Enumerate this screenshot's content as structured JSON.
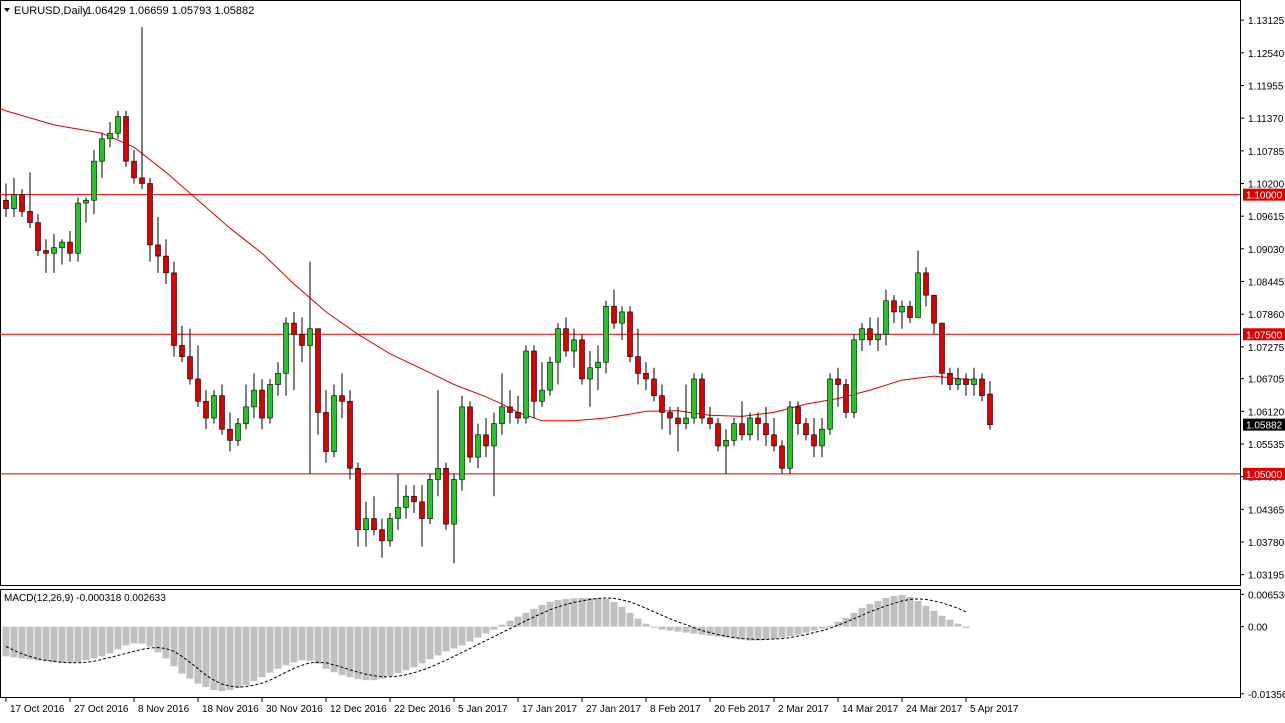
{
  "header": {
    "symbol": "EURUSD,Daily",
    "ohlc": "1.06429 1.06659 1.05793 1.05882"
  },
  "colors": {
    "bull": "#22c522",
    "bear": "#dd0000",
    "wick": "#000000",
    "ma": "#dd0000",
    "hline": "#dd0000",
    "hist": "#c0c0c0",
    "signal": "#000000",
    "background": "#ffffff"
  },
  "chart_data": {
    "type": "candlestick",
    "price_axis": {
      "ticks": [
        "1.13125",
        "1.12540",
        "1.11955",
        "1.11370",
        "1.10785",
        "1.10200",
        "1.09615",
        "1.09030",
        "1.08445",
        "1.07860",
        "1.07275",
        "1.06705",
        "1.06120",
        "1.05535",
        "1.04950",
        "1.04365",
        "1.03780",
        "1.03195"
      ],
      "range": [
        1.0301,
        1.1345
      ]
    },
    "current_price_label": "1.05882",
    "current_price": 1.05882,
    "horizontal_levels": [
      {
        "value": 1.1,
        "label": "1.10000"
      },
      {
        "value": 1.075,
        "label": "1.07500"
      },
      {
        "value": 1.05,
        "label": "1.05000"
      }
    ],
    "date_labels": [
      {
        "label": "17 Oct 2016",
        "index": 0
      },
      {
        "label": "27 Oct 2016",
        "index": 8
      },
      {
        "label": "8 Nov 2016",
        "index": 16
      },
      {
        "label": "18 Nov 2016",
        "index": 24
      },
      {
        "label": "30 Nov 2016",
        "index": 32
      },
      {
        "label": "12 Dec 2016",
        "index": 40
      },
      {
        "label": "22 Dec 2016",
        "index": 48
      },
      {
        "label": "5 Jan 2017",
        "index": 56
      },
      {
        "label": "17 Jan 2017",
        "index": 64
      },
      {
        "label": "27 Jan 2017",
        "index": 72
      },
      {
        "label": "8 Feb 2017",
        "index": 80
      },
      {
        "label": "20 Feb 2017",
        "index": 88
      },
      {
        "label": "2 Mar 2017",
        "index": 96
      },
      {
        "label": "14 Mar 2017",
        "index": 104
      },
      {
        "label": "24 Mar 2017",
        "index": 112
      },
      {
        "label": "5 Apr 2017",
        "index": 120
      }
    ],
    "candles": [
      [
        1.099,
        1.102,
        1.096,
        1.0975
      ],
      [
        1.0975,
        1.103,
        1.096,
        1.1
      ],
      [
        1.1,
        1.101,
        1.096,
        1.097
      ],
      [
        1.097,
        1.104,
        1.094,
        1.095
      ],
      [
        1.095,
        1.0965,
        1.089,
        1.09
      ],
      [
        1.09,
        1.092,
        1.086,
        1.0895
      ],
      [
        1.0895,
        1.093,
        1.086,
        1.0905
      ],
      [
        1.0905,
        1.092,
        1.0875,
        1.0915
      ],
      [
        1.0915,
        1.0935,
        1.088,
        1.0895
      ],
      [
        1.0895,
        1.0995,
        1.088,
        1.0985
      ],
      [
        1.0985,
        1.0995,
        1.095,
        1.099
      ],
      [
        1.099,
        1.108,
        1.0965,
        1.106
      ],
      [
        1.106,
        1.111,
        1.103,
        1.11
      ],
      [
        1.11,
        1.113,
        1.1085,
        1.111
      ],
      [
        1.111,
        1.115,
        1.11,
        1.114
      ],
      [
        1.114,
        1.115,
        1.105,
        1.106
      ],
      [
        1.106,
        1.108,
        1.102,
        1.103
      ],
      [
        1.103,
        1.13,
        1.101,
        1.102
      ],
      [
        1.102,
        1.103,
        1.088,
        1.091
      ],
      [
        1.091,
        1.096,
        1.086,
        1.089
      ],
      [
        1.089,
        1.092,
        1.084,
        1.086
      ],
      [
        1.086,
        1.088,
        1.071,
        1.073
      ],
      [
        1.073,
        1.0765,
        1.07,
        1.071
      ],
      [
        1.071,
        1.076,
        1.066,
        1.067
      ],
      [
        1.067,
        1.073,
        1.062,
        1.063
      ],
      [
        1.063,
        1.065,
        1.058,
        1.06
      ],
      [
        1.06,
        1.065,
        1.059,
        1.064
      ],
      [
        1.064,
        1.066,
        1.057,
        1.058
      ],
      [
        1.058,
        1.061,
        1.054,
        1.056
      ],
      [
        1.056,
        1.06,
        1.055,
        1.059
      ],
      [
        1.059,
        1.066,
        1.058,
        1.062
      ],
      [
        1.062,
        1.068,
        1.06,
        1.065
      ],
      [
        1.065,
        1.067,
        1.058,
        1.06
      ],
      [
        1.06,
        1.067,
        1.059,
        1.066
      ],
      [
        1.066,
        1.07,
        1.064,
        1.068
      ],
      [
        1.068,
        1.078,
        1.064,
        1.077
      ],
      [
        1.077,
        1.079,
        1.065,
        1.075
      ],
      [
        1.075,
        1.078,
        1.07,
        1.073
      ],
      [
        1.073,
        1.088,
        1.05,
        1.076
      ],
      [
        1.076,
        1.076,
        1.057,
        1.061
      ],
      [
        1.061,
        1.065,
        1.052,
        1.054
      ],
      [
        1.054,
        1.066,
        1.053,
        1.064
      ],
      [
        1.064,
        1.068,
        1.06,
        1.063
      ],
      [
        1.063,
        1.065,
        1.049,
        1.051
      ],
      [
        1.051,
        1.052,
        1.037,
        1.04
      ],
      [
        1.04,
        1.045,
        1.037,
        1.042
      ],
      [
        1.042,
        1.046,
        1.039,
        1.04
      ],
      [
        1.04,
        1.042,
        1.035,
        1.038
      ],
      [
        1.038,
        1.043,
        1.037,
        1.042
      ],
      [
        1.042,
        1.05,
        1.04,
        1.044
      ],
      [
        1.044,
        1.048,
        1.042,
        1.046
      ],
      [
        1.046,
        1.048,
        1.043,
        1.045
      ],
      [
        1.045,
        1.048,
        1.037,
        1.042
      ],
      [
        1.042,
        1.05,
        1.041,
        1.049
      ],
      [
        1.049,
        1.065,
        1.046,
        1.051
      ],
      [
        1.051,
        1.052,
        1.04,
        1.041
      ],
      [
        1.041,
        1.05,
        1.034,
        1.049
      ],
      [
        1.049,
        1.064,
        1.047,
        1.062
      ],
      [
        1.062,
        1.063,
        1.052,
        1.053
      ],
      [
        1.053,
        1.059,
        1.051,
        1.057
      ],
      [
        1.057,
        1.06,
        1.053,
        1.055
      ],
      [
        1.055,
        1.061,
        1.046,
        1.059
      ],
      [
        1.059,
        1.068,
        1.057,
        1.062
      ],
      [
        1.062,
        1.065,
        1.059,
        1.061
      ],
      [
        1.061,
        1.064,
        1.059,
        1.06
      ],
      [
        1.06,
        1.073,
        1.059,
        1.072
      ],
      [
        1.072,
        1.073,
        1.06,
        1.063
      ],
      [
        1.063,
        1.07,
        1.062,
        1.065
      ],
      [
        1.065,
        1.071,
        1.064,
        1.07
      ],
      [
        1.07,
        1.077,
        1.066,
        1.076
      ],
      [
        1.076,
        1.078,
        1.071,
        1.072
      ],
      [
        1.072,
        1.076,
        1.069,
        1.074
      ],
      [
        1.074,
        1.075,
        1.066,
        1.067
      ],
      [
        1.067,
        1.072,
        1.062,
        1.069
      ],
      [
        1.069,
        1.073,
        1.065,
        1.07
      ],
      [
        1.07,
        1.081,
        1.068,
        1.08
      ],
      [
        1.08,
        1.083,
        1.076,
        1.077
      ],
      [
        1.077,
        1.08,
        1.074,
        1.079
      ],
      [
        1.079,
        1.08,
        1.07,
        1.071
      ],
      [
        1.071,
        1.076,
        1.066,
        1.068
      ],
      [
        1.068,
        1.07,
        1.065,
        1.067
      ],
      [
        1.067,
        1.069,
        1.063,
        1.064
      ],
      [
        1.064,
        1.066,
        1.058,
        1.061
      ],
      [
        1.061,
        1.062,
        1.057,
        1.06
      ],
      [
        1.06,
        1.062,
        1.054,
        1.059
      ],
      [
        1.059,
        1.066,
        1.058,
        1.06
      ],
      [
        1.06,
        1.068,
        1.059,
        1.067
      ],
      [
        1.067,
        1.068,
        1.059,
        1.06
      ],
      [
        1.06,
        1.062,
        1.058,
        1.059
      ],
      [
        1.059,
        1.06,
        1.054,
        1.055
      ],
      [
        1.055,
        1.058,
        1.05,
        1.056
      ],
      [
        1.056,
        1.06,
        1.055,
        1.059
      ],
      [
        1.059,
        1.063,
        1.056,
        1.057
      ],
      [
        1.057,
        1.061,
        1.056,
        1.06
      ],
      [
        1.06,
        1.061,
        1.056,
        1.059
      ],
      [
        1.059,
        1.062,
        1.055,
        1.057
      ],
      [
        1.057,
        1.06,
        1.054,
        1.055
      ],
      [
        1.055,
        1.056,
        1.05,
        1.051
      ],
      [
        1.051,
        1.063,
        1.05,
        1.062
      ],
      [
        1.062,
        1.063,
        1.057,
        1.059
      ],
      [
        1.059,
        1.06,
        1.056,
        1.057
      ],
      [
        1.057,
        1.06,
        1.053,
        1.055
      ],
      [
        1.055,
        1.06,
        1.053,
        1.058
      ],
      [
        1.058,
        1.068,
        1.057,
        1.067
      ],
      [
        1.067,
        1.069,
        1.062,
        1.066
      ],
      [
        1.066,
        1.067,
        1.06,
        1.061
      ],
      [
        1.061,
        1.075,
        1.06,
        1.074
      ],
      [
        1.074,
        1.077,
        1.072,
        1.076
      ],
      [
        1.076,
        1.078,
        1.073,
        1.074
      ],
      [
        1.074,
        1.078,
        1.072,
        1.075
      ],
      [
        1.075,
        1.083,
        1.073,
        1.081
      ],
      [
        1.081,
        1.082,
        1.077,
        1.079
      ],
      [
        1.079,
        1.081,
        1.076,
        1.08
      ],
      [
        1.08,
        1.081,
        1.077,
        1.078
      ],
      [
        1.078,
        1.09,
        1.078,
        1.086
      ],
      [
        1.086,
        1.087,
        1.08,
        1.082
      ],
      [
        1.082,
        1.082,
        1.075,
        1.077
      ],
      [
        1.077,
        1.077,
        1.066,
        1.068
      ],
      [
        1.068,
        1.069,
        1.065,
        1.066
      ],
      [
        1.066,
        1.069,
        1.065,
        1.067
      ],
      [
        1.067,
        1.068,
        1.064,
        1.066
      ],
      [
        1.066,
        1.069,
        1.064,
        1.067
      ],
      [
        1.067,
        1.068,
        1.063,
        1.064
      ],
      [
        1.0643,
        1.0666,
        1.0579,
        1.0588
      ]
    ],
    "ma_path": [
      [
        -8,
        1.119
      ],
      [
        -4,
        1.1175
      ],
      [
        0,
        1.115
      ],
      [
        6,
        1.1125
      ],
      [
        12,
        1.111
      ],
      [
        16,
        1.1085
      ],
      [
        20,
        1.104
      ],
      [
        24,
        1.099
      ],
      [
        28,
        1.094
      ],
      [
        32,
        1.0895
      ],
      [
        36,
        1.084
      ],
      [
        40,
        1.079
      ],
      [
        44,
        1.075
      ],
      [
        48,
        1.0715
      ],
      [
        52,
        1.0688
      ],
      [
        56,
        1.066
      ],
      [
        60,
        1.0638
      ],
      [
        62,
        1.0625
      ],
      [
        64,
        1.061
      ],
      [
        67,
        1.0595
      ],
      [
        71,
        1.0595
      ],
      [
        75,
        1.06
      ],
      [
        78,
        1.0607
      ],
      [
        80,
        1.0612
      ],
      [
        84,
        1.0613
      ],
      [
        88,
        1.0605
      ],
      [
        92,
        1.0603
      ],
      [
        96,
        1.061
      ],
      [
        100,
        1.0625
      ],
      [
        104,
        1.0635
      ],
      [
        108,
        1.065
      ],
      [
        112,
        1.0668
      ],
      [
        116,
        1.0675
      ],
      [
        121,
        1.0668
      ]
    ],
    "macd": {
      "label": "MACD(12,26,9) -0.000318 0.002633",
      "ticks": [
        "0.006536",
        "0.00",
        "-0.013560"
      ],
      "range": [
        -0.014,
        0.007
      ],
      "histogram": [
        -0.006,
        -0.0062,
        -0.0064,
        -0.0066,
        -0.0068,
        -0.007,
        -0.0072,
        -0.0073,
        -0.0073,
        -0.0072,
        -0.0068,
        -0.0064,
        -0.006,
        -0.0054,
        -0.0046,
        -0.0038,
        -0.0034,
        -0.0034,
        -0.004,
        -0.0052,
        -0.0064,
        -0.008,
        -0.0095,
        -0.0105,
        -0.0115,
        -0.0122,
        -0.0128,
        -0.013,
        -0.0128,
        -0.0124,
        -0.0118,
        -0.011,
        -0.0102,
        -0.0093,
        -0.0085,
        -0.0078,
        -0.0072,
        -0.0068,
        -0.0069,
        -0.0075,
        -0.0085,
        -0.0092,
        -0.0098,
        -0.0102,
        -0.0106,
        -0.0108,
        -0.0108,
        -0.0105,
        -0.01,
        -0.0094,
        -0.0088,
        -0.0082,
        -0.0074,
        -0.0066,
        -0.0058,
        -0.005,
        -0.0044,
        -0.0038,
        -0.003,
        -0.0022,
        -0.0014,
        -0.0006,
        0.0004,
        0.0012,
        0.002,
        0.0028,
        0.0036,
        0.0044,
        0.005,
        0.0054,
        0.0056,
        0.0057,
        0.0058,
        0.0058,
        0.0058,
        0.0056,
        0.005,
        0.004,
        0.0028,
        0.0016,
        0.0006,
        -0.0002,
        -0.0006,
        -0.0008,
        -0.001,
        -0.0012,
        -0.0014,
        -0.0016,
        -0.0018,
        -0.002,
        -0.0022,
        -0.0024,
        -0.0026,
        -0.0028,
        -0.0028,
        -0.0027,
        -0.0025,
        -0.0022,
        -0.0019,
        -0.0016,
        -0.0012,
        -0.0008,
        -0.0004,
        0.0002,
        0.001,
        0.0018,
        0.0028,
        0.0038,
        0.0046,
        0.0052,
        0.0058,
        0.0062,
        0.0064,
        0.006,
        0.0052,
        0.0042,
        0.0032,
        0.0022,
        0.0014,
        0.0006,
        -0.0003
      ],
      "signal": [
        -0.004,
        -0.0048,
        -0.0055,
        -0.006,
        -0.0065,
        -0.0068,
        -0.007,
        -0.0072,
        -0.0073,
        -0.0073,
        -0.0072,
        -0.007,
        -0.0066,
        -0.0062,
        -0.0058,
        -0.0054,
        -0.005,
        -0.0046,
        -0.0043,
        -0.0042,
        -0.0044,
        -0.005,
        -0.006,
        -0.0072,
        -0.0085,
        -0.0098,
        -0.0108,
        -0.0116,
        -0.012,
        -0.0122,
        -0.0121,
        -0.0118,
        -0.0114,
        -0.0108,
        -0.01,
        -0.0092,
        -0.0084,
        -0.0078,
        -0.0073,
        -0.0072,
        -0.0073,
        -0.0077,
        -0.0082,
        -0.0087,
        -0.0092,
        -0.0096,
        -0.0099,
        -0.0101,
        -0.0101,
        -0.01,
        -0.0097,
        -0.0093,
        -0.0088,
        -0.0082,
        -0.0075,
        -0.0068,
        -0.006,
        -0.0052,
        -0.0044,
        -0.0036,
        -0.0028,
        -0.002,
        -0.0012,
        -0.0004,
        0.0004,
        0.0012,
        0.002,
        0.0027,
        0.0034,
        0.004,
        0.0045,
        0.0049,
        0.0052,
        0.0055,
        0.0057,
        0.0058,
        0.0057,
        0.0054,
        0.005,
        0.0044,
        0.0037,
        0.003,
        0.0023,
        0.0016,
        0.001,
        0.0004,
        -0.0002,
        -0.0008,
        -0.0012,
        -0.0016,
        -0.0019,
        -0.0022,
        -0.0024,
        -0.0025,
        -0.0026,
        -0.0026,
        -0.0025,
        -0.0024,
        -0.0022,
        -0.0019,
        -0.0016,
        -0.0012,
        -0.0008,
        -0.0003,
        0.0003,
        0.0009,
        0.0016,
        0.0023,
        0.003,
        0.0036,
        0.0042,
        0.0047,
        0.0052,
        0.0055,
        0.0056,
        0.0055,
        0.0052,
        0.0048,
        0.0043,
        0.0037,
        0.003
      ]
    }
  }
}
